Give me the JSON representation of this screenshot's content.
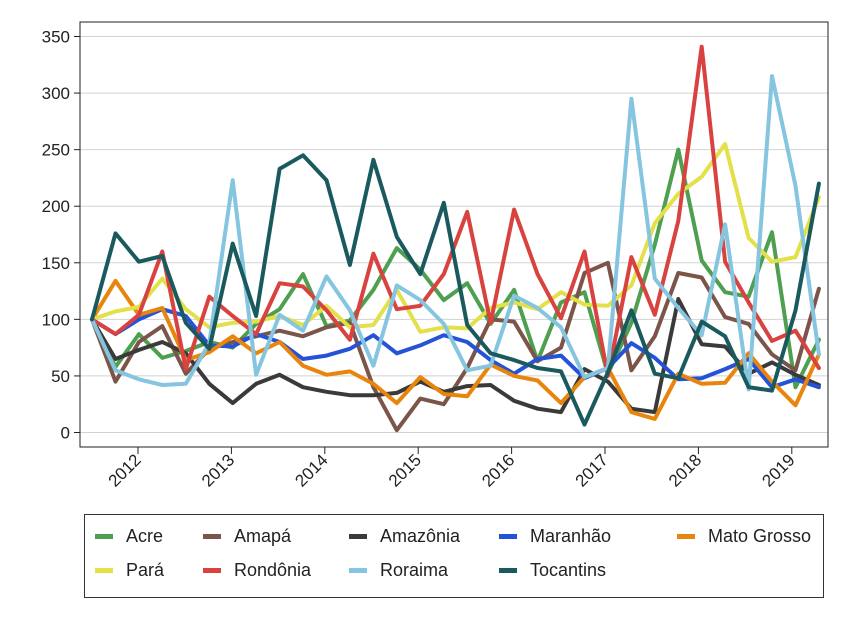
{
  "chart_data": {
    "type": "line",
    "x": [
      "2011Q3",
      "2011Q4",
      "2012Q1",
      "2012Q2",
      "2012Q3",
      "2012Q4",
      "2013Q1",
      "2013Q2",
      "2013Q3",
      "2013Q4",
      "2014Q1",
      "2014Q2",
      "2014Q3",
      "2014Q4",
      "2015Q1",
      "2015Q2",
      "2015Q3",
      "2015Q4",
      "2016Q1",
      "2016Q2",
      "2016Q3",
      "2016Q4",
      "2017Q1",
      "2017Q2",
      "2017Q3",
      "2017Q4",
      "2018Q1",
      "2018Q2",
      "2018Q3",
      "2018Q4",
      "2019Q1",
      "2019Q2"
    ],
    "x_tick_labels": [
      "2012",
      "2013",
      "2014",
      "2015",
      "2016",
      "2017",
      "2018",
      "2019"
    ],
    "y_tick_labels": [
      "0",
      "50",
      "100",
      "150",
      "200",
      "250",
      "300",
      "350"
    ],
    "ylim": [
      -12,
      355
    ],
    "grid": "horizontal",
    "legend_position": "bottom",
    "series": [
      {
        "name": "Acre",
        "color": "#4e9f50",
        "values": [
          100,
          58,
          87,
          66,
          72,
          80,
          75,
          96,
          109,
          140,
          94,
          99,
          126,
          163,
          144,
          117,
          132,
          96,
          126,
          63,
          115,
          124,
          52,
          97,
          166,
          250,
          152,
          124,
          120,
          177,
          40,
          82
        ]
      },
      {
        "name": "Amapá",
        "color": "#7b5549",
        "values": [
          100,
          45,
          80,
          94,
          52,
          74,
          80,
          85,
          90,
          85,
          93,
          97,
          40,
          2,
          30,
          25,
          57,
          100,
          98,
          63,
          75,
          141,
          150,
          55,
          85,
          141,
          137,
          102,
          96,
          69,
          55,
          127
        ]
      },
      {
        "name": "Amazônia",
        "color": "#3a3a3a",
        "values": [
          100,
          65,
          73,
          80,
          70,
          43,
          26,
          43,
          51,
          40,
          36,
          33,
          33,
          35,
          45,
          36,
          41,
          42,
          28,
          21,
          18,
          56,
          45,
          21,
          18,
          118,
          78,
          76,
          52,
          62,
          51,
          42
        ]
      },
      {
        "name": "Maranhão",
        "color": "#2553d8",
        "values": [
          100,
          87,
          100,
          109,
          103,
          77,
          76,
          87,
          80,
          65,
          68,
          74,
          86,
          70,
          77,
          86,
          80,
          64,
          52,
          65,
          68,
          48,
          57,
          79,
          66,
          47,
          48,
          56,
          65,
          40,
          47,
          40
        ]
      },
      {
        "name": "Mato Grosso",
        "color": "#e8850c",
        "values": [
          100,
          134,
          104,
          110,
          64,
          71,
          85,
          70,
          80,
          59,
          51,
          54,
          43,
          26,
          49,
          34,
          32,
          60,
          50,
          46,
          26,
          49,
          57,
          18,
          12,
          52,
          43,
          44,
          70,
          45,
          24,
          69
        ]
      },
      {
        "name": "Pará",
        "color": "#e3e04a",
        "values": [
          100,
          107,
          111,
          136,
          109,
          93,
          97,
          98,
          103,
          95,
          112,
          93,
          95,
          126,
          89,
          93,
          92,
          110,
          115,
          109,
          124,
          113,
          112,
          130,
          185,
          211,
          226,
          255,
          172,
          151,
          155,
          208
        ]
      },
      {
        "name": "Rondônia",
        "color": "#d84340",
        "values": [
          100,
          87,
          104,
          160,
          56,
          120,
          103,
          87,
          132,
          129,
          108,
          82,
          158,
          109,
          112,
          140,
          195,
          97,
          197,
          140,
          101,
          160,
          50,
          155,
          104,
          187,
          341,
          151,
          115,
          81,
          90,
          57
        ]
      },
      {
        "name": "Roraima",
        "color": "#85c5e0",
        "values": [
          100,
          55,
          47,
          42,
          43,
          79,
          223,
          51,
          104,
          90,
          138,
          108,
          59,
          130,
          117,
          96,
          55,
          59,
          121,
          110,
          93,
          49,
          57,
          295,
          136,
          110,
          86,
          184,
          38,
          315,
          218,
          69
        ]
      },
      {
        "name": "Tocantins",
        "color": "#1a5a5e",
        "values": [
          100,
          176,
          151,
          156,
          97,
          74,
          167,
          103,
          233,
          245,
          223,
          148,
          241,
          173,
          140,
          203,
          95,
          70,
          64,
          57,
          54,
          7,
          53,
          108,
          52,
          48,
          98,
          85,
          40,
          37,
          108,
          220
        ]
      }
    ]
  }
}
